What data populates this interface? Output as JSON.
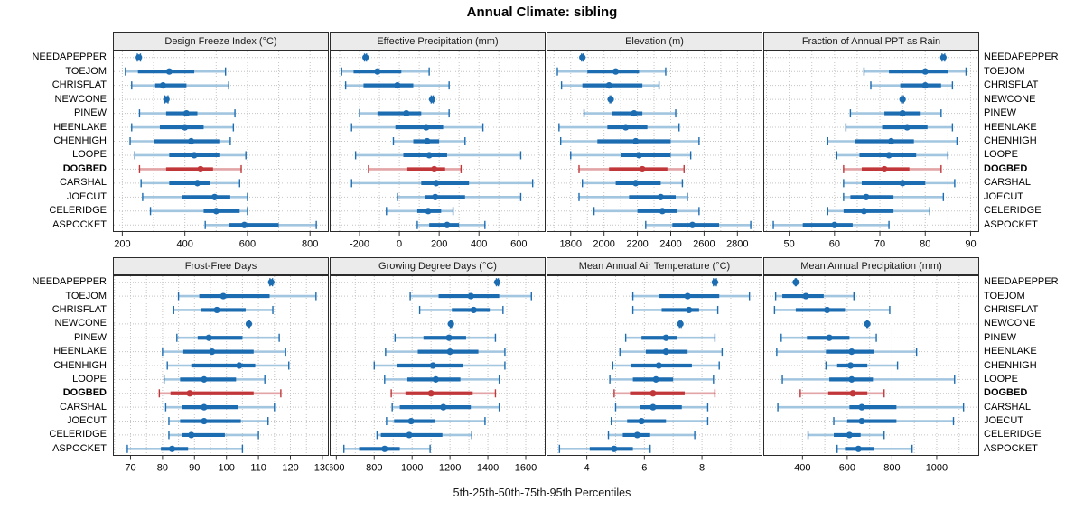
{
  "title": "Annual Climate: sibling",
  "caption": "5th-25th-50th-75th-95th Percentiles",
  "percentiles_shown": [
    5,
    25,
    50,
    75,
    95
  ],
  "sites": [
    "NEEDAPEPPER",
    "TOEJOM",
    "CHRISFLAT",
    "NEWCONE",
    "PINEW",
    "HEENLAKE",
    "CHENHIGH",
    "LOOPE",
    "DOGBED",
    "CARSHAL",
    "JOECUT",
    "CELERIDGE",
    "ASPOCKET"
  ],
  "highlight_site": "DOGBED",
  "colors": {
    "series_solid": "#1c6cb1",
    "series_pale": "#a3c6e0",
    "highlight_solid": "#c13739",
    "highlight_pale": "#e2a4a6",
    "strip_background": "#ebebeb",
    "panel_border": "#2b2b2b",
    "gridline": "#c4c4c4",
    "tick_label": "#000000"
  },
  "chart_data": [
    {
      "type": "dotplot-percentiles",
      "title": "Design Freeze Index (°C)",
      "domain": [
        170,
        860
      ],
      "ticks": [
        200,
        400,
        600,
        800
      ],
      "values": {
        "NEEDAPEPPER": [
          248,
          251,
          253,
          255,
          258
        ],
        "TOEJOM": [
          210,
          250,
          350,
          430,
          530
        ],
        "CHRISFLAT": [
          230,
          305,
          330,
          405,
          540
        ],
        "NEWCONE": [
          336,
          339,
          341,
          343,
          346
        ],
        "PINEW": [
          255,
          340,
          405,
          440,
          560
        ],
        "HEENLAKE": [
          230,
          320,
          400,
          460,
          555
        ],
        "CHENHIGH": [
          225,
          300,
          420,
          510,
          545
        ],
        "LOOPE": [
          240,
          350,
          430,
          510,
          595
        ],
        "DOGBED": [
          255,
          340,
          450,
          490,
          580
        ],
        "CARSHAL": [
          260,
          350,
          440,
          480,
          575
        ],
        "JOECUT": [
          265,
          390,
          495,
          545,
          600
        ],
        "CELERIDGE": [
          290,
          460,
          500,
          575,
          600
        ],
        "ASPOCKET": [
          465,
          540,
          590,
          700,
          820
        ]
      }
    },
    {
      "type": "dotplot-percentiles",
      "title": "Effective Precipitation (mm)",
      "domain": [
        -350,
        735
      ],
      "ticks": [
        -200,
        0,
        200,
        400,
        600
      ],
      "values": {
        "NEEDAPEPPER": [
          -175,
          -172,
          -170,
          -168,
          -165
        ],
        "TOEJOM": [
          -290,
          -230,
          -110,
          10,
          150
        ],
        "CHRISFLAT": [
          -270,
          -180,
          -10,
          70,
          250
        ],
        "NEWCONE": [
          160,
          163,
          165,
          167,
          170
        ],
        "PINEW": [
          -200,
          -110,
          35,
          110,
          250
        ],
        "HEENLAKE": [
          -240,
          -20,
          135,
          220,
          420
        ],
        "CHENHIGH": [
          -30,
          70,
          140,
          200,
          330
        ],
        "LOOPE": [
          -220,
          20,
          150,
          240,
          610
        ],
        "DOGBED": [
          -155,
          40,
          175,
          230,
          310
        ],
        "CARSHAL": [
          -240,
          110,
          185,
          350,
          670
        ],
        "JOECUT": [
          -10,
          130,
          180,
          330,
          610
        ],
        "CELERIDGE": [
          -65,
          90,
          145,
          210,
          270
        ],
        "ASPOCKET": [
          90,
          150,
          240,
          300,
          430
        ]
      }
    },
    {
      "type": "dotplot-percentiles",
      "title": "Elevation (m)",
      "domain": [
        1655,
        2950
      ],
      "ticks": [
        1800,
        2000,
        2200,
        2400,
        2600,
        2800
      ],
      "values": {
        "NEEDAPEPPER": [
          1865,
          1868,
          1870,
          1872,
          1875
        ],
        "TOEJOM": [
          1720,
          1900,
          2070,
          2210,
          2370
        ],
        "CHRISFLAT": [
          1745,
          1870,
          2030,
          2230,
          2330
        ],
        "NEWCONE": [
          2035,
          2038,
          2040,
          2042,
          2045
        ],
        "PINEW": [
          1880,
          2050,
          2180,
          2230,
          2430
        ],
        "HEENLAKE": [
          1730,
          2020,
          2130,
          2260,
          2450
        ],
        "CHENHIGH": [
          1740,
          1960,
          2190,
          2400,
          2570
        ],
        "LOOPE": [
          1800,
          2100,
          2210,
          2400,
          2520
        ],
        "DOGBED": [
          1850,
          2030,
          2230,
          2380,
          2480
        ],
        "CARSHAL": [
          1870,
          2070,
          2190,
          2340,
          2470
        ],
        "JOECUT": [
          1850,
          2150,
          2340,
          2430,
          2500
        ],
        "CELERIDGE": [
          1940,
          2200,
          2350,
          2440,
          2570
        ],
        "ASPOCKET": [
          2250,
          2410,
          2530,
          2690,
          2880
        ]
      }
    },
    {
      "type": "dotplot-percentiles",
      "title": "Fraction of Annual PPT as Rain",
      "domain": [
        44.3,
        91.9
      ],
      "ticks": [
        50,
        60,
        70,
        80,
        90
      ],
      "values": {
        "NEEDAPEPPER": [
          83.7,
          83.9,
          84,
          84.1,
          84.3
        ],
        "TOEJOM": [
          66.5,
          72,
          80,
          85,
          89
        ],
        "CHRISFLAT": [
          68,
          74.5,
          80,
          83.5,
          86
        ],
        "NEWCONE": [
          74.8,
          74.9,
          75,
          75.1,
          75.2
        ],
        "PINEW": [
          63.5,
          71,
          75,
          79,
          83.5
        ],
        "HEENLAKE": [
          62.5,
          70.5,
          76,
          80.5,
          86
        ],
        "CHENHIGH": [
          58.5,
          64.5,
          72.5,
          77.5,
          87
        ],
        "LOOPE": [
          60.5,
          65.5,
          72,
          78,
          85
        ],
        "DOGBED": [
          62,
          66,
          71,
          76.5,
          83.5
        ],
        "CARSHAL": [
          62,
          66,
          75,
          80,
          86.5
        ],
        "JOECUT": [
          62,
          63.5,
          67,
          73,
          84
        ],
        "CELERIDGE": [
          58.5,
          62,
          66.5,
          73,
          81
        ],
        "ASPOCKET": [
          46.5,
          53,
          60,
          64,
          72
        ]
      }
    },
    {
      "type": "dotplot-percentiles",
      "title": "Frost-Free Days",
      "domain": [
        64.5,
        132
      ],
      "ticks": [
        70,
        80,
        90,
        100,
        110,
        120,
        130
      ],
      "values": {
        "NEEDAPEPPER": [
          113.6,
          113.8,
          114,
          114.2,
          114.4
        ],
        "TOEJOM": [
          85,
          91.5,
          99,
          113.5,
          128
        ],
        "CHRISFLAT": [
          83.5,
          92,
          97,
          106,
          114.5
        ],
        "NEWCONE": [
          106.8,
          106.9,
          107,
          107.1,
          107.2
        ],
        "PINEW": [
          84.5,
          91,
          94.5,
          105,
          116.5
        ],
        "HEENLAKE": [
          80,
          86.5,
          95.5,
          108.5,
          118.5
        ],
        "CHENHIGH": [
          81.5,
          89,
          104,
          109,
          119.5
        ],
        "LOOPE": [
          80.5,
          85.5,
          93,
          103,
          112
        ],
        "DOGBED": [
          79,
          82.5,
          88.5,
          108.5,
          117
        ],
        "CARSHAL": [
          81,
          86,
          93,
          103.5,
          115
        ],
        "JOECUT": [
          82,
          85.5,
          93,
          104.5,
          113
        ],
        "CELERIDGE": [
          82,
          86,
          89,
          99.5,
          110
        ],
        "ASPOCKET": [
          69,
          79.5,
          83,
          88,
          105
        ]
      }
    },
    {
      "type": "dotplot-percentiles",
      "title": "Growing Degree Days (°C)",
      "domain": [
        565,
        1705
      ],
      "ticks": [
        600,
        800,
        1000,
        1200,
        1400,
        1600
      ],
      "values": {
        "NEEDAPEPPER": [
          1445,
          1448,
          1450,
          1452,
          1455
        ],
        "TOEJOM": [
          990,
          1140,
          1310,
          1460,
          1630
        ],
        "CHRISFLAT": [
          1040,
          1210,
          1325,
          1410,
          1480
        ],
        "NEWCONE": [
          1202,
          1204,
          1205,
          1206,
          1208
        ],
        "PINEW": [
          910,
          1060,
          1195,
          1285,
          1440
        ],
        "HEENLAKE": [
          860,
          1030,
          1200,
          1350,
          1490
        ],
        "CHENHIGH": [
          800,
          920,
          1110,
          1270,
          1490
        ],
        "LOOPE": [
          855,
          975,
          1125,
          1255,
          1460
        ],
        "DOGBED": [
          890,
          965,
          1100,
          1320,
          1440
        ],
        "CARSHAL": [
          895,
          935,
          1165,
          1310,
          1460
        ],
        "JOECUT": [
          865,
          905,
          995,
          1120,
          1385
        ],
        "CELERIDGE": [
          815,
          835,
          985,
          1160,
          1315
        ],
        "ASPOCKET": [
          640,
          720,
          855,
          935,
          1095
        ]
      }
    },
    {
      "type": "dotplot-percentiles",
      "title": "Mean Annual Air Temperature (°C)",
      "domain": [
        2.6,
        10.1
      ],
      "ticks": [
        4,
        6,
        8
      ],
      "values": {
        "NEEDAPEPPER": [
          8.4,
          8.42,
          8.45,
          8.48,
          8.5
        ],
        "TOEJOM": [
          5.6,
          6.5,
          7.5,
          8.6,
          9.65
        ],
        "CHRISFLAT": [
          5.6,
          6.6,
          7.55,
          7.9,
          8.55
        ],
        "NEWCONE": [
          7.22,
          7.24,
          7.25,
          7.26,
          7.28
        ],
        "PINEW": [
          5.35,
          5.9,
          6.75,
          7.15,
          8.45
        ],
        "HEENLAKE": [
          5.15,
          6.05,
          6.75,
          7.5,
          8.7
        ],
        "CHENHIGH": [
          4.9,
          5.55,
          6.5,
          7.65,
          8.6
        ],
        "LOOPE": [
          4.8,
          5.6,
          6.4,
          7.0,
          8.4
        ],
        "DOGBED": [
          4.95,
          5.5,
          6.3,
          7.4,
          8.45
        ],
        "CARSHAL": [
          5.0,
          5.85,
          6.3,
          7.3,
          8.2
        ],
        "JOECUT": [
          4.85,
          5.4,
          5.9,
          6.75,
          8.2
        ],
        "CELERIDGE": [
          4.75,
          5.25,
          5.75,
          6.2,
          7.75
        ],
        "ASPOCKET": [
          3.05,
          4.1,
          4.95,
          5.6,
          6.2
        ]
      }
    },
    {
      "type": "dotplot-percentiles",
      "title": "Mean Annual Precipitation (mm)",
      "domain": [
        225,
        1190
      ],
      "ticks": [
        400,
        600,
        800,
        1000
      ],
      "values": {
        "NEEDAPEPPER": [
          368,
          369,
          370,
          371,
          372
        ],
        "TOEJOM": [
          280,
          310,
          415,
          495,
          630
        ],
        "CHRISFLAT": [
          275,
          370,
          510,
          590,
          790
        ],
        "NEWCONE": [
          688,
          689,
          690,
          691,
          692
        ],
        "PINEW": [
          305,
          420,
          520,
          610,
          730
        ],
        "HEENLAKE": [
          285,
          505,
          620,
          720,
          910
        ],
        "CHENHIGH": [
          505,
          555,
          615,
          690,
          825
        ],
        "LOOPE": [
          310,
          520,
          620,
          715,
          1080
        ],
        "DOGBED": [
          390,
          515,
          625,
          690,
          765
        ],
        "CARSHAL": [
          290,
          610,
          665,
          820,
          1120
        ],
        "JOECUT": [
          540,
          600,
          665,
          820,
          1075
        ],
        "CELERIDGE": [
          425,
          540,
          610,
          660,
          765
        ],
        "ASPOCKET": [
          555,
          590,
          650,
          720,
          890
        ]
      }
    }
  ]
}
